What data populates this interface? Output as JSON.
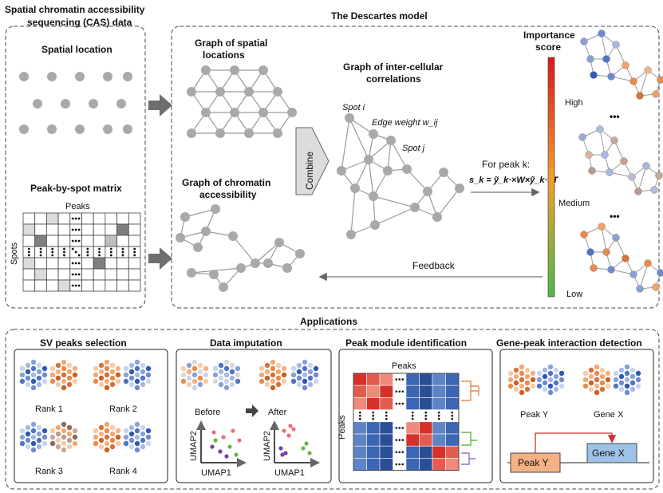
{
  "header": {
    "cas_title_line1": "Spatial chromatin accessibility",
    "cas_title_line2": "sequencing (CAS) data",
    "model_title": "The Descartes model"
  },
  "left_panel": {
    "spatial_location": "Spatial location",
    "matrix_title": "Peak-by-spot matrix",
    "peaks_label": "Peaks",
    "spots_label": "Spots"
  },
  "model": {
    "graph_spatial_line1": "Graph of spatial",
    "graph_spatial_line2": "locations",
    "graph_chromatin_line1": "Graph of chromatin",
    "graph_chromatin_line2": "accessibility",
    "combine": "Combine",
    "graph_inter_line1": "Graph of inter-cellular",
    "graph_inter_line2": "correlations",
    "spot_i": "Spot i",
    "spot_j": "Spot j",
    "edge_weight": "Edge weight w_ij",
    "for_peak": "For peak k:",
    "formula": "s_k = ỹ_k·×W×ỹ_k·^T",
    "feedback": "Feedback",
    "importance_line1": "Importance",
    "importance_line2": "score",
    "high": "High",
    "medium": "Medium",
    "low": "Low",
    "ellipsis": "•••"
  },
  "applications": {
    "title": "Applications",
    "sv": {
      "title": "SV peaks selection",
      "rank1": "Rank 1",
      "rank2": "Rank 2",
      "rank3": "Rank 3",
      "rank4": "Rank 4"
    },
    "imputation": {
      "title": "Data imputation",
      "before": "Before",
      "after": "After",
      "umap1": "UMAP1",
      "umap2": "UMAP2"
    },
    "module": {
      "title": "Peak module identification",
      "peaks_top": "Peaks",
      "peaks_side": "Peaks"
    },
    "interaction": {
      "title": "Gene-peak interaction detection",
      "peak_y": "Peak Y",
      "gene_x": "Gene X"
    }
  },
  "colors": {
    "accent_orange": "#e98b4a",
    "accent_blue": "#4f74c4",
    "gray_node": "#a9a9a9",
    "heat_red": "#d7302a",
    "heat_blue": "#3a66b3"
  }
}
